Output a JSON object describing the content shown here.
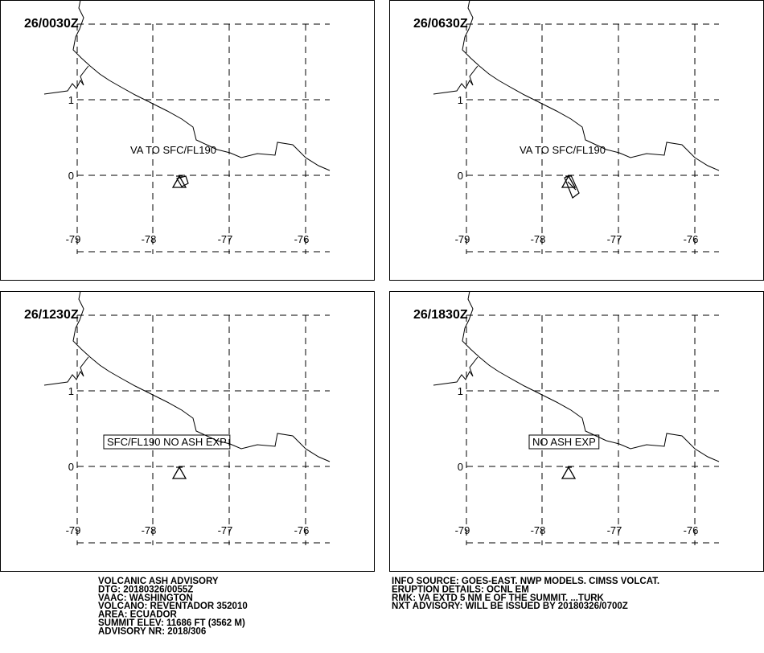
{
  "map": {
    "lat_labels": [
      "1",
      "0"
    ],
    "lon_labels": [
      "-79",
      "-78",
      "-77",
      "-76"
    ],
    "panels": [
      {
        "time": "26/0030Z",
        "annotation": "VA TO SFC/FL190"
      },
      {
        "time": "26/0630Z",
        "annotation": "VA TO SFC/FL190"
      },
      {
        "time": "26/1230Z",
        "annotation": "SFC/FL190 NO ASH EXP"
      },
      {
        "time": "26/1830Z",
        "annotation": "NO ASH EXP"
      }
    ]
  },
  "advisory_left": [
    "VOLCANIC ASH ADVISORY",
    "DTG: 20180326/0055Z",
    "VAAC: WASHINGTON",
    "VOLCANO: REVENTADOR 352010",
    "AREA: ECUADOR",
    "SUMMIT ELEV: 11686 FT (3562 M)",
    "ADVISORY NR: 2018/306"
  ],
  "advisory_right": [
    "INFO SOURCE: GOES-EAST. NWP MODELS. CIMSS VOLCAT.",
    "ERUPTION DETAILS: OCNL EM",
    "RMK: VA EXTD 5 NM E OF THE SUMMIT. ...TURK",
    "NXT ADVISORY: WILL BE ISSUED BY 20180326/0700Z"
  ]
}
